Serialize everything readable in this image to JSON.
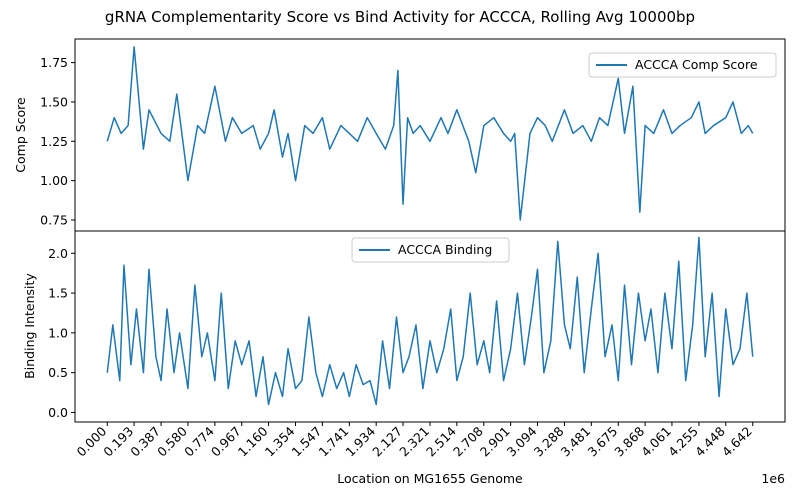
{
  "figure": {
    "title": "gRNA Complementarity Score vs Bind Activity for ACCCA, Rolling Avg 10000bp",
    "x_offset_label": "1e6",
    "xlabel": "Location on MG1655 Genome"
  },
  "colors": {
    "series": "#1f77b4",
    "axes": "#000000",
    "background": "#ffffff"
  },
  "chart_data": [
    {
      "type": "line",
      "title": "",
      "xlabel": "",
      "ylabel": "Comp Score",
      "xlim": [
        -0.232,
        4.874
      ],
      "ylim": [
        0.68,
        1.9
      ],
      "yticks": [
        0.75,
        1.0,
        1.25,
        1.5,
        1.75
      ],
      "ytick_labels": [
        "0.75",
        "1.00",
        "1.25",
        "1.50",
        "1.75"
      ],
      "grid": false,
      "legend": "upper right",
      "series": [
        {
          "name": "ACCCA Comp Score",
          "x": [
            0.0,
            0.05,
            0.1,
            0.15,
            0.193,
            0.26,
            0.3,
            0.387,
            0.45,
            0.5,
            0.58,
            0.65,
            0.7,
            0.774,
            0.85,
            0.9,
            0.967,
            1.05,
            1.1,
            1.16,
            1.2,
            1.26,
            1.3,
            1.354,
            1.42,
            1.48,
            1.547,
            1.6,
            1.68,
            1.741,
            1.8,
            1.87,
            1.934,
            2.0,
            2.06,
            2.09,
            2.127,
            2.16,
            2.2,
            2.25,
            2.321,
            2.4,
            2.45,
            2.514,
            2.6,
            2.65,
            2.708,
            2.78,
            2.85,
            2.901,
            2.93,
            2.97,
            3.04,
            3.094,
            3.15,
            3.2,
            3.288,
            3.35,
            3.42,
            3.481,
            3.54,
            3.6,
            3.675,
            3.72,
            3.78,
            3.83,
            3.868,
            3.93,
            4.0,
            4.061,
            4.12,
            4.2,
            4.255,
            4.3,
            4.36,
            4.448,
            4.5,
            4.56,
            4.61,
            4.642
          ],
          "y": [
            1.25,
            1.4,
            1.3,
            1.35,
            1.85,
            1.2,
            1.45,
            1.3,
            1.25,
            1.55,
            1.0,
            1.35,
            1.3,
            1.6,
            1.25,
            1.4,
            1.3,
            1.35,
            1.2,
            1.3,
            1.45,
            1.15,
            1.3,
            1.0,
            1.35,
            1.3,
            1.4,
            1.2,
            1.35,
            1.3,
            1.25,
            1.4,
            1.3,
            1.2,
            1.35,
            1.7,
            0.85,
            1.4,
            1.3,
            1.35,
            1.25,
            1.4,
            1.3,
            1.45,
            1.25,
            1.05,
            1.35,
            1.4,
            1.3,
            1.25,
            1.3,
            0.75,
            1.3,
            1.4,
            1.35,
            1.25,
            1.45,
            1.3,
            1.35,
            1.25,
            1.4,
            1.35,
            1.65,
            1.3,
            1.6,
            0.8,
            1.35,
            1.3,
            1.45,
            1.3,
            1.35,
            1.4,
            1.5,
            1.3,
            1.35,
            1.4,
            1.5,
            1.3,
            1.35,
            1.3
          ]
        }
      ]
    },
    {
      "type": "line",
      "title": "",
      "xlabel": "Location on MG1655 Genome",
      "ylabel": "Binding Intensity",
      "xlim": [
        -0.232,
        4.874
      ],
      "ylim": [
        -0.12,
        2.28
      ],
      "yticks": [
        0.0,
        0.5,
        1.0,
        1.5,
        2.0
      ],
      "ytick_labels": [
        "0.0",
        "0.5",
        "1.0",
        "1.5",
        "2.0"
      ],
      "xticks": [
        0.0,
        0.193,
        0.387,
        0.58,
        0.774,
        0.967,
        1.16,
        1.354,
        1.547,
        1.741,
        1.934,
        2.127,
        2.321,
        2.514,
        2.708,
        2.901,
        3.094,
        3.288,
        3.481,
        3.675,
        3.868,
        4.061,
        4.255,
        4.448,
        4.642
      ],
      "xtick_labels": [
        "0.000",
        "0.193",
        "0.387",
        "0.580",
        "0.774",
        "0.967",
        "1.160",
        "1.354",
        "1.547",
        "1.741",
        "1.934",
        "2.127",
        "2.321",
        "2.514",
        "2.708",
        "2.901",
        "3.094",
        "3.288",
        "3.481",
        "3.675",
        "3.868",
        "4.061",
        "4.255",
        "4.448",
        "4.642"
      ],
      "grid": false,
      "legend": "upper center",
      "series": [
        {
          "name": "ACCCA Binding",
          "x": [
            0.0,
            0.04,
            0.09,
            0.12,
            0.17,
            0.21,
            0.26,
            0.3,
            0.35,
            0.387,
            0.43,
            0.48,
            0.52,
            0.58,
            0.63,
            0.68,
            0.72,
            0.774,
            0.82,
            0.87,
            0.92,
            0.967,
            1.02,
            1.07,
            1.12,
            1.16,
            1.21,
            1.26,
            1.3,
            1.354,
            1.4,
            1.45,
            1.5,
            1.547,
            1.6,
            1.65,
            1.7,
            1.741,
            1.79,
            1.84,
            1.89,
            1.934,
            1.98,
            2.03,
            2.08,
            2.127,
            2.17,
            2.22,
            2.27,
            2.321,
            2.37,
            2.42,
            2.47,
            2.514,
            2.56,
            2.61,
            2.66,
            2.708,
            2.75,
            2.8,
            2.85,
            2.901,
            2.95,
            3.0,
            3.05,
            3.094,
            3.14,
            3.19,
            3.24,
            3.288,
            3.33,
            3.38,
            3.43,
            3.481,
            3.53,
            3.58,
            3.63,
            3.675,
            3.72,
            3.77,
            3.82,
            3.868,
            3.91,
            3.96,
            4.01,
            4.061,
            4.11,
            4.16,
            4.21,
            4.255,
            4.3,
            4.35,
            4.4,
            4.448,
            4.5,
            4.55,
            4.6,
            4.642
          ],
          "y": [
            0.5,
            1.1,
            0.4,
            1.85,
            0.6,
            1.3,
            0.5,
            1.8,
            0.7,
            0.4,
            1.3,
            0.5,
            1.0,
            0.3,
            1.6,
            0.7,
            1.0,
            0.4,
            1.5,
            0.3,
            0.9,
            0.6,
            0.9,
            0.2,
            0.7,
            0.1,
            0.5,
            0.2,
            0.8,
            0.3,
            0.4,
            1.2,
            0.5,
            0.2,
            0.6,
            0.3,
            0.5,
            0.2,
            0.6,
            0.35,
            0.4,
            0.1,
            0.9,
            0.3,
            1.2,
            0.5,
            0.7,
            1.1,
            0.3,
            0.9,
            0.5,
            0.8,
            1.3,
            0.4,
            0.7,
            1.5,
            0.6,
            0.9,
            0.5,
            1.4,
            0.4,
            0.8,
            1.5,
            0.6,
            1.2,
            1.8,
            0.5,
            0.9,
            2.15,
            1.1,
            0.8,
            1.7,
            0.5,
            1.3,
            2.0,
            0.7,
            1.1,
            0.4,
            1.6,
            0.6,
            1.5,
            0.9,
            1.3,
            0.5,
            1.5,
            0.8,
            1.9,
            0.4,
            1.1,
            2.2,
            0.7,
            1.5,
            0.2,
            1.3,
            0.6,
            0.8,
            1.5,
            0.7
          ]
        }
      ]
    }
  ]
}
